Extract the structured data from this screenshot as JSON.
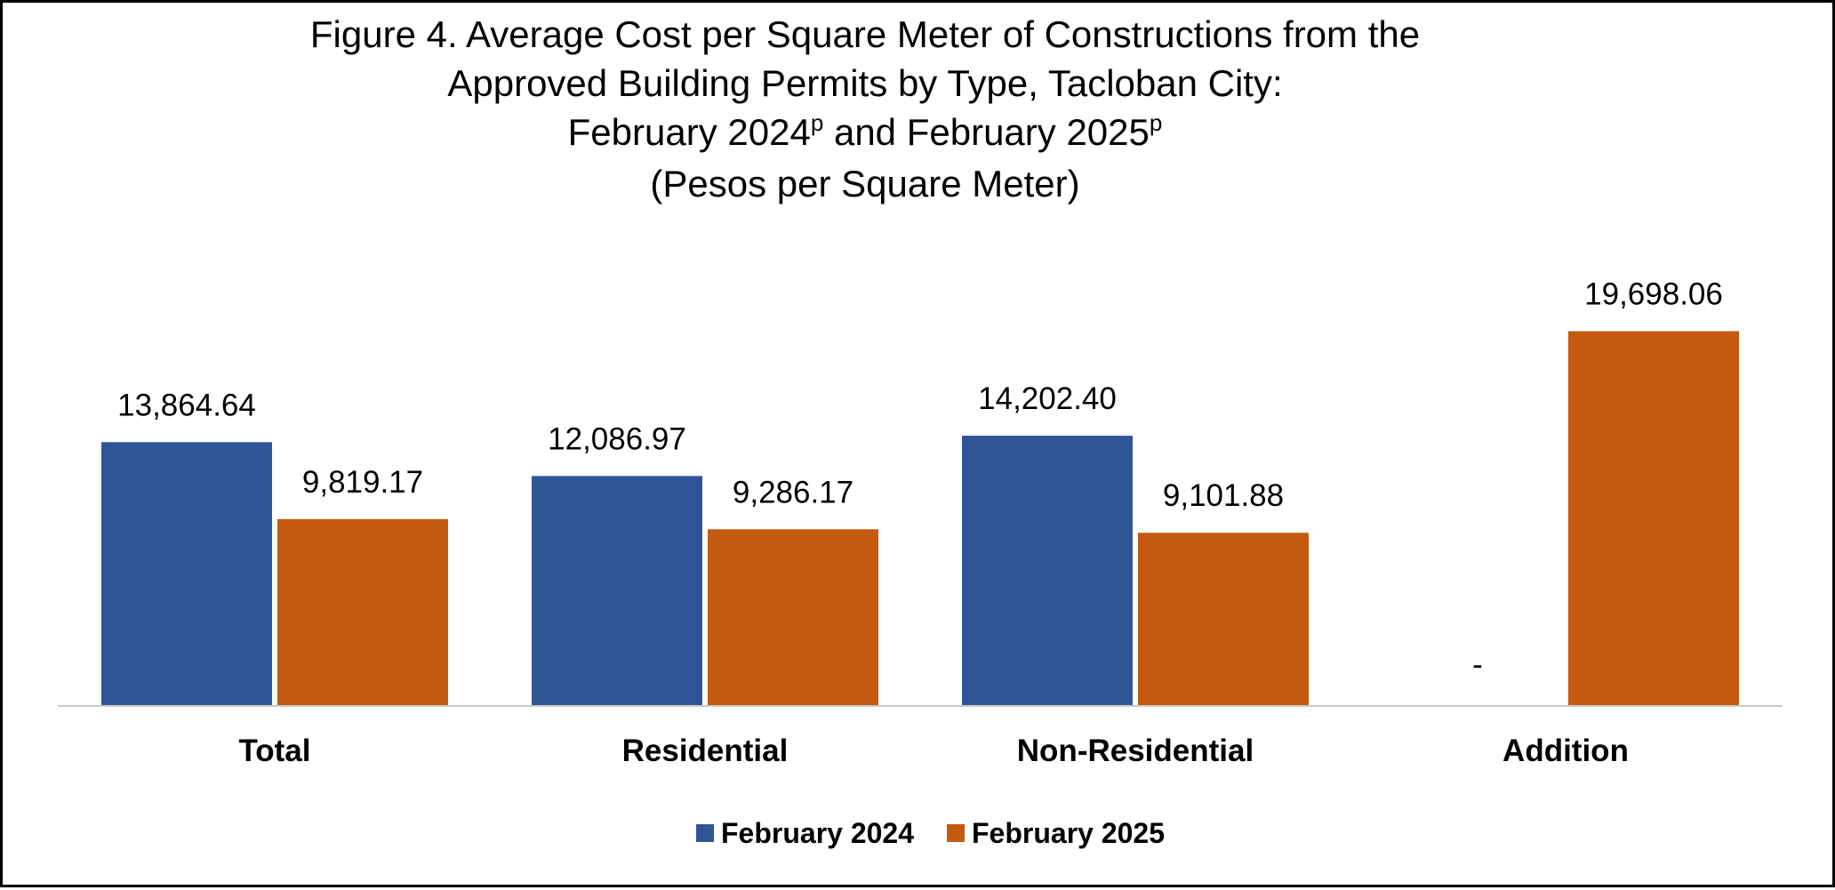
{
  "chart_data": {
    "type": "bar",
    "title_lines": [
      "Figure 4. Average Cost per Square Meter of Constructions from the",
      "Approved Building Permits by Type, Tacloban City:"
    ],
    "title_line3": {
      "part1": "February 2024",
      "sup1": "p",
      "part2": " and February 2025",
      "sup2": "p"
    },
    "subtitle": "(Pesos per Square Meter)",
    "categories": [
      "Total",
      "Residential",
      "Non-Residential",
      "Addition"
    ],
    "series": [
      {
        "name": "February 2024",
        "color": "#2F5597",
        "values": [
          13864.64,
          12086.97,
          14202.4,
          null
        ],
        "labels": [
          "13,864.64",
          "12,086.97",
          "14,202.40",
          "-"
        ]
      },
      {
        "name": "February 2025",
        "color": "#C55A11",
        "values": [
          9819.17,
          9286.17,
          9101.88,
          19698.06
        ],
        "labels": [
          "9,819.17",
          "9,286.17",
          "9,101.88",
          "19,698.06"
        ]
      }
    ],
    "ylim": [
      0,
      20000
    ],
    "grid": false,
    "legend_position": "bottom"
  }
}
